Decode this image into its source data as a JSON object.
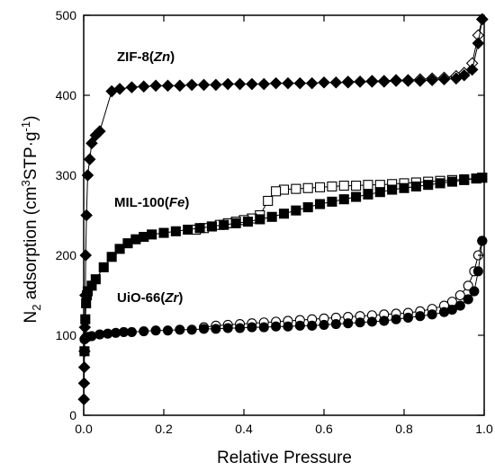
{
  "chart_data": {
    "type": "scatter",
    "title": "",
    "xlabel": "Relative Pressure",
    "ylabel_parts": {
      "main": "N",
      "sub": "2",
      "rest": " adsorption (cm",
      "sup": "3",
      "rest2": "STP·g",
      "sup2": "-1",
      "end": ")"
    },
    "xlim": [
      0,
      1
    ],
    "ylim": [
      0,
      500
    ],
    "x_ticks": [
      "0.0",
      "0.2",
      "0.4",
      "0.6",
      "0.8",
      "1.0"
    ],
    "y_ticks": [
      "0",
      "100",
      "200",
      "300",
      "400",
      "500"
    ],
    "x_tick_values": [
      0,
      0.2,
      0.4,
      0.6,
      0.8,
      1.0
    ],
    "y_tick_values": [
      0,
      100,
      200,
      300,
      400,
      500
    ],
    "grid": false,
    "series": [
      {
        "name": "ZIF-8(Zn)",
        "name_main": "ZIF-8(",
        "name_ital": "Zn",
        "name_end": ")",
        "marker": "diamond",
        "adsorption": {
          "x": [
            0.0005,
            0.001,
            0.0015,
            0.002,
            0.003,
            0.004,
            0.005,
            0.007,
            0.01,
            0.015,
            0.02,
            0.03,
            0.04,
            0.07,
            0.09,
            0.12,
            0.15,
            0.18,
            0.21,
            0.24,
            0.27,
            0.3,
            0.33,
            0.36,
            0.39,
            0.42,
            0.45,
            0.48,
            0.51,
            0.54,
            0.57,
            0.6,
            0.63,
            0.66,
            0.69,
            0.72,
            0.75,
            0.78,
            0.81,
            0.84,
            0.87,
            0.9,
            0.93,
            0.95,
            0.97,
            0.985,
            0.995
          ],
          "y": [
            20,
            40,
            60,
            80,
            110,
            150,
            200,
            250,
            300,
            320,
            340,
            350,
            355,
            405,
            408,
            410,
            411,
            412,
            412,
            412,
            413,
            413,
            413,
            414,
            414,
            414,
            414,
            415,
            415,
            415,
            415,
            416,
            416,
            416,
            417,
            417,
            417,
            418,
            418,
            418,
            419,
            420,
            421,
            425,
            432,
            465,
            495
          ]
        },
        "desorption": {
          "x": [
            0.995,
            0.985,
            0.97,
            0.95,
            0.93,
            0.9,
            0.87,
            0.84,
            0.81,
            0.78,
            0.75,
            0.72,
            0.69,
            0.66
          ],
          "y": [
            495,
            475,
            440,
            428,
            424,
            422,
            421,
            420,
            419,
            419,
            418,
            418,
            417,
            417
          ]
        }
      },
      {
        "name": "MIL-100(Fe)",
        "name_main": "MIL-100(",
        "name_ital": "Fe",
        "name_end": ")",
        "marker": "square",
        "adsorption": {
          "x": [
            0.002,
            0.004,
            0.006,
            0.008,
            0.01,
            0.02,
            0.03,
            0.05,
            0.07,
            0.09,
            0.11,
            0.13,
            0.15,
            0.17,
            0.2,
            0.23,
            0.26,
            0.29,
            0.32,
            0.35,
            0.38,
            0.41,
            0.44,
            0.47,
            0.5,
            0.53,
            0.56,
            0.59,
            0.62,
            0.65,
            0.68,
            0.71,
            0.74,
            0.77,
            0.8,
            0.83,
            0.86,
            0.89,
            0.92,
            0.95,
            0.98,
            0.995
          ],
          "y": [
            80,
            120,
            140,
            150,
            155,
            162,
            170,
            185,
            198,
            208,
            215,
            220,
            223,
            226,
            228,
            230,
            232,
            234,
            236,
            238,
            240,
            242,
            245,
            248,
            252,
            256,
            260,
            264,
            267,
            270,
            273,
            276,
            279,
            282,
            284,
            286,
            288,
            290,
            292,
            294,
            296,
            297
          ]
        },
        "desorption": {
          "x": [
            0.995,
            0.98,
            0.95,
            0.92,
            0.89,
            0.86,
            0.83,
            0.8,
            0.77,
            0.74,
            0.71,
            0.68,
            0.65,
            0.62,
            0.59,
            0.56,
            0.53,
            0.5,
            0.48,
            0.46,
            0.44,
            0.42,
            0.4,
            0.38,
            0.36,
            0.34,
            0.32,
            0.3,
            0.28
          ],
          "y": [
            297,
            296,
            295,
            294,
            293,
            292,
            291,
            290,
            289,
            288,
            288,
            287,
            287,
            286,
            285,
            284,
            283,
            282,
            280,
            268,
            250,
            246,
            244,
            242,
            240,
            238,
            236,
            234,
            232
          ]
        }
      },
      {
        "name": "UiO-66(Zr)",
        "name_main": "UiO-66(",
        "name_ital": "Zr",
        "name_end": ")",
        "marker": "circle",
        "adsorption": {
          "x": [
            0.002,
            0.005,
            0.01,
            0.02,
            0.04,
            0.06,
            0.08,
            0.1,
            0.12,
            0.15,
            0.18,
            0.21,
            0.24,
            0.27,
            0.3,
            0.33,
            0.36,
            0.39,
            0.42,
            0.45,
            0.48,
            0.51,
            0.54,
            0.57,
            0.6,
            0.63,
            0.66,
            0.69,
            0.72,
            0.75,
            0.78,
            0.81,
            0.84,
            0.87,
            0.9,
            0.92,
            0.94,
            0.96,
            0.975,
            0.985,
            0.995
          ],
          "y": [
            95,
            97,
            98,
            99,
            101,
            102,
            103,
            104,
            104,
            105,
            106,
            106,
            107,
            107,
            108,
            108,
            109,
            109,
            110,
            110,
            111,
            111,
            112,
            112,
            113,
            114,
            115,
            116,
            117,
            118,
            120,
            122,
            124,
            126,
            129,
            132,
            137,
            145,
            155,
            180,
            218
          ]
        },
        "desorption": {
          "x": [
            0.995,
            0.985,
            0.975,
            0.96,
            0.94,
            0.92,
            0.9,
            0.87,
            0.84,
            0.81,
            0.78,
            0.75,
            0.72,
            0.69,
            0.66,
            0.63,
            0.6,
            0.57,
            0.54,
            0.51,
            0.48,
            0.45,
            0.42,
            0.39,
            0.36,
            0.33,
            0.3
          ],
          "y": [
            218,
            200,
            180,
            162,
            150,
            142,
            137,
            133,
            130,
            128,
            127,
            126,
            125,
            124,
            123,
            122,
            121,
            120,
            119,
            118,
            117,
            116,
            115,
            114,
            113,
            112,
            110
          ]
        }
      }
    ],
    "colors": {
      "marker_fill": "#000000",
      "marker_open": "#ffffff",
      "axis": "#000000",
      "line": "#000000"
    }
  }
}
